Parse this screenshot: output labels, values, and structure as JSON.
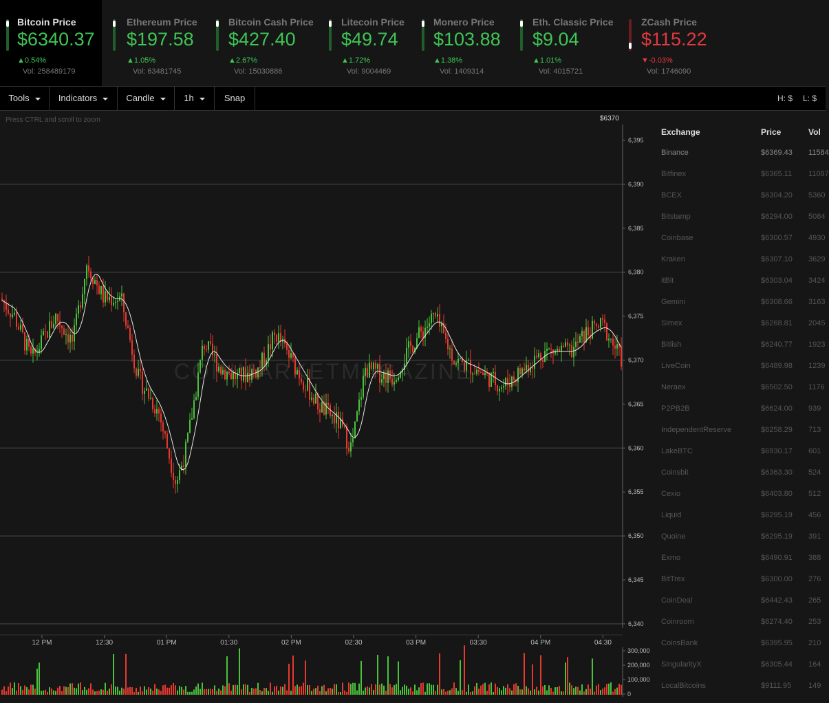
{
  "tickers": [
    {
      "name": "Bitcoin Price",
      "price": "$6340.37",
      "change": "0.54%",
      "dir": "up",
      "vol": "Vol: 258489179"
    },
    {
      "name": "Ethereum Price",
      "price": "$197.58",
      "change": "1.05%",
      "dir": "up",
      "vol": "Vol: 63481745"
    },
    {
      "name": "Bitcoin Cash Price",
      "price": "$427.40",
      "change": "2.67%",
      "dir": "up",
      "vol": "Vol: 15030886"
    },
    {
      "name": "Litecoin Price",
      "price": "$49.74",
      "change": "1.72%",
      "dir": "up",
      "vol": "Vol: 9004469"
    },
    {
      "name": "Monero Price",
      "price": "$103.88",
      "change": "1.38%",
      "dir": "up",
      "vol": "Vol: 1409314"
    },
    {
      "name": "Eth. Classic Price",
      "price": "$9.04",
      "change": "1.01%",
      "dir": "up",
      "vol": "Vol: 4015721"
    },
    {
      "name": "ZCash Price",
      "price": "$115.22",
      "change": "-0.03%",
      "dir": "down",
      "vol": "Vol: 1746090"
    }
  ],
  "toolbar": {
    "tools": "Tools",
    "indicators": "Indicators",
    "candle": "Candle",
    "interval": "1h",
    "snap": "Snap",
    "high": "H: $",
    "low": "L: $"
  },
  "chart": {
    "hint": "Press CTRL and scroll to zoom",
    "current_price": "$6370",
    "watermark": "COINMARKETMAGAZINE",
    "y_ticks": [
      "6,395",
      "6,390",
      "6,385",
      "6,380",
      "6,375",
      "6,370",
      "6,365",
      "6,360",
      "6,355",
      "6,350",
      "6,345",
      "6,340"
    ],
    "x_ticks": [
      "12 PM",
      "12:30",
      "01 PM",
      "01:30",
      "02 PM",
      "02:30",
      "03 PM",
      "03:30",
      "04 PM",
      "04:30"
    ],
    "vol_ticks": [
      "300,000",
      "200,000",
      "100,000",
      "0"
    ],
    "up_color": "#4cc23c",
    "down_color": "#e8392f"
  },
  "exchanges": {
    "headers": {
      "exchange": "Exchange",
      "price": "Price",
      "vol": "Vol"
    },
    "rows": [
      {
        "name": "Binance",
        "price": "$6369.43",
        "vol": "11584"
      },
      {
        "name": "Bitfinex",
        "price": "$6365.11",
        "vol": "11087"
      },
      {
        "name": "BCEX",
        "price": "$6304.20",
        "vol": "5360"
      },
      {
        "name": "Bitstamp",
        "price": "$6294.00",
        "vol": "5084"
      },
      {
        "name": "Coinbase",
        "price": "$6300.57",
        "vol": "4930"
      },
      {
        "name": "Kraken",
        "price": "$6307.10",
        "vol": "3629"
      },
      {
        "name": "itBit",
        "price": "$6303.04",
        "vol": "3424"
      },
      {
        "name": "Gemini",
        "price": "$6308.66",
        "vol": "3163"
      },
      {
        "name": "Simex",
        "price": "$6268.81",
        "vol": "2045"
      },
      {
        "name": "Bitlish",
        "price": "$6240.77",
        "vol": "1923"
      },
      {
        "name": "LiveCoin",
        "price": "$6489.98",
        "vol": "1239"
      },
      {
        "name": "Neraex",
        "price": "$6502.50",
        "vol": "1176"
      },
      {
        "name": "P2PB2B",
        "price": "$6624.00",
        "vol": "939"
      },
      {
        "name": "IndependentReserve",
        "price": "$6258.29",
        "vol": "713"
      },
      {
        "name": "LakeBTC",
        "price": "$6930.17",
        "vol": "601"
      },
      {
        "name": "Coinsbit",
        "price": "$6363.30",
        "vol": "524"
      },
      {
        "name": "Cexio",
        "price": "$6403.80",
        "vol": "512"
      },
      {
        "name": "Liquid",
        "price": "$6295.19",
        "vol": "456"
      },
      {
        "name": "Quoine",
        "price": "$6295.19",
        "vol": "391"
      },
      {
        "name": "Exmo",
        "price": "$6490.91",
        "vol": "388"
      },
      {
        "name": "BitTrex",
        "price": "$6300.00",
        "vol": "276"
      },
      {
        "name": "CoinDeal",
        "price": "$6442.43",
        "vol": "265"
      },
      {
        "name": "Coinroom",
        "price": "$6274.40",
        "vol": "253"
      },
      {
        "name": "CoinsBank",
        "price": "$6395.95",
        "vol": "210"
      },
      {
        "name": "SingularityX",
        "price": "$6305.44",
        "vol": "164"
      },
      {
        "name": "LocalBitcoins",
        "price": "$9111.95",
        "vol": "149"
      }
    ]
  }
}
